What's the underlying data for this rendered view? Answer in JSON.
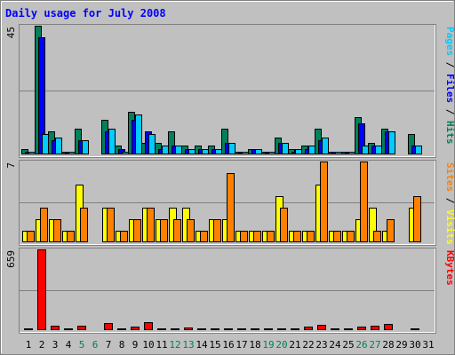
{
  "chart_data": {
    "type": "bar",
    "title": "Daily usage for July 2008",
    "days": [
      "1",
      "2",
      "3",
      "4",
      "5",
      "6",
      "7",
      "8",
      "9",
      "10",
      "11",
      "12",
      "13",
      "14",
      "15",
      "16",
      "17",
      "18",
      "19",
      "20",
      "21",
      "22",
      "23",
      "24",
      "25",
      "26",
      "27",
      "28",
      "29",
      "30",
      "31"
    ],
    "weekend_days": [
      5,
      6,
      12,
      13,
      19,
      20,
      26,
      27
    ],
    "panels": [
      {
        "name": "top",
        "ymax_label": "45",
        "ymax": 45,
        "right_label": [
          {
            "text": "Pages",
            "color": "#00ccff"
          },
          {
            "text": " / ",
            "color": "#000000"
          },
          {
            "text": "Files",
            "color": "#0000ff"
          },
          {
            "text": " / ",
            "color": "#000000"
          },
          {
            "text": "Hits",
            "color": "#00805c"
          }
        ],
        "series": [
          {
            "name": "Hits",
            "color": "#00805c",
            "values": [
              2,
              45,
              8,
              1,
              9,
              0,
              12,
              3,
              15,
              4,
              4,
              8,
              3,
              3,
              3,
              9,
              1,
              2,
              1,
              6,
              2,
              3,
              9,
              1,
              1,
              13,
              4,
              9,
              0,
              7,
              0
            ]
          },
          {
            "name": "Files",
            "color": "#0000ff",
            "values": [
              1,
              41,
              5,
              1,
              5,
              0,
              8,
              2,
              12,
              8,
              2,
              3,
              2,
              2,
              2,
              4,
              1,
              2,
              1,
              4,
              1,
              2,
              5,
              1,
              1,
              11,
              3,
              8,
              0,
              3,
              0
            ]
          },
          {
            "name": "Pages",
            "color": "#00ccff",
            "values": [
              1,
              7,
              6,
              1,
              5,
              0,
              9,
              1,
              14,
              7,
              3,
              3,
              2,
              2,
              2,
              4,
              1,
              2,
              1,
              4,
              2,
              3,
              6,
              1,
              1,
              3,
              3,
              8,
              0,
              3,
              0
            ]
          }
        ]
      },
      {
        "name": "middle",
        "ymax_label": "7",
        "ymax": 7,
        "right_label": [
          {
            "text": "Sites",
            "color": "#ff8000"
          },
          {
            "text": " / ",
            "color": "#000000"
          },
          {
            "text": "Visits",
            "color": "#ffff00"
          }
        ],
        "series": [
          {
            "name": "Visits",
            "color": "#ffff00",
            "values": [
              1,
              2,
              2,
              1,
              5,
              0,
              3,
              1,
              2,
              3,
              2,
              3,
              3,
              1,
              2,
              2,
              1,
              1,
              1,
              4,
              1,
              1,
              5,
              1,
              1,
              2,
              3,
              1,
              0,
              3,
              0
            ]
          },
          {
            "name": "Sites",
            "color": "#ff8000",
            "values": [
              1,
              3,
              2,
              1,
              3,
              0,
              3,
              1,
              2,
              3,
              2,
              2,
              2,
              1,
              2,
              6,
              1,
              1,
              1,
              3,
              1,
              1,
              7,
              1,
              1,
              7,
              1,
              2,
              0,
              4,
              0
            ]
          }
        ]
      },
      {
        "name": "bottom",
        "ymax_label": "659",
        "ymax": 659,
        "right_label": [
          {
            "text": "KBytes",
            "color": "#ff0000"
          }
        ],
        "series": [
          {
            "name": "KBytes",
            "color": "#ff0000",
            "values": [
              5,
              659,
              38,
              3,
              33,
              0,
              60,
              17,
              28,
              64,
              16,
              15,
              22,
              17,
              9,
              15,
              12,
              15,
              13,
              16,
              15,
              28,
              45,
              15,
              15,
              28,
              34,
              52,
              0,
              12,
              0
            ]
          }
        ]
      }
    ]
  }
}
